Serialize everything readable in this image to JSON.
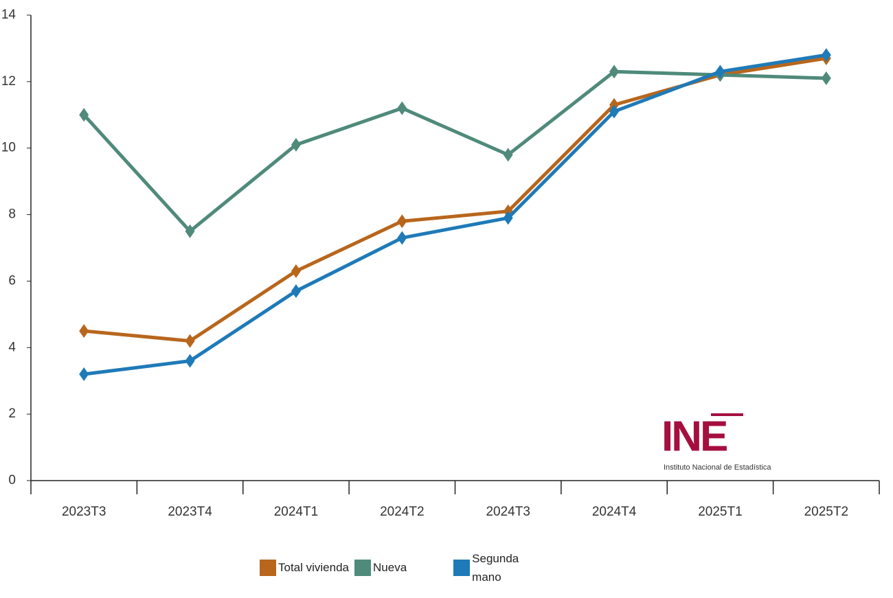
{
  "chart_data": {
    "type": "line",
    "categories": [
      "2023T3",
      "2023T4",
      "2024T1",
      "2024T2",
      "2024T3",
      "2024T4",
      "2025T1",
      "2025T2"
    ],
    "series": [
      {
        "name": "Total vivienda",
        "color": "#b8661c",
        "values": [
          4.5,
          4.2,
          6.3,
          7.8,
          8.1,
          11.3,
          12.2,
          12.7
        ]
      },
      {
        "name": "Nueva",
        "color": "#4f8a7a",
        "values": [
          11.0,
          7.5,
          10.1,
          11.2,
          9.8,
          12.3,
          12.2,
          12.1
        ]
      },
      {
        "name": "Segunda mano",
        "color": "#1f7ab8",
        "values": [
          3.2,
          3.6,
          5.7,
          7.3,
          7.9,
          11.1,
          12.3,
          12.8
        ]
      }
    ],
    "ylim": [
      0,
      14
    ],
    "yticks": [
      0,
      2,
      4,
      6,
      8,
      10,
      12,
      14
    ],
    "grid": false,
    "logo": {
      "text": "INE",
      "subtitle": "Instituto Nacional de Estadística",
      "color": "#a50f3f"
    }
  }
}
